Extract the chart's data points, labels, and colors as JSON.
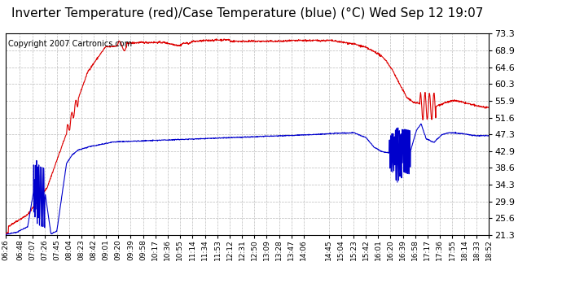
{
  "title": "Inverter Temperature (red)/Case Temperature (blue) (°C) Wed Sep 12 19:07",
  "copyright": "Copyright 2007 Cartronics.com",
  "background_color": "#ffffff",
  "plot_background": "#ffffff",
  "grid_color": "#bbbbbb",
  "y_ticks": [
    21.3,
    25.6,
    29.9,
    34.3,
    38.6,
    42.9,
    47.3,
    51.6,
    55.9,
    60.3,
    64.6,
    68.9,
    73.3
  ],
  "ylim": [
    21.3,
    73.3
  ],
  "x_labels": [
    "06:26",
    "06:48",
    "07:07",
    "07:26",
    "07:45",
    "08:04",
    "08:23",
    "08:42",
    "09:01",
    "09:20",
    "09:39",
    "09:58",
    "10:17",
    "10:36",
    "10:55",
    "11:14",
    "11:34",
    "11:53",
    "12:12",
    "12:31",
    "12:50",
    "13:09",
    "13:28",
    "13:47",
    "14:06",
    "14:45",
    "15:04",
    "15:23",
    "15:42",
    "16:01",
    "16:20",
    "16:39",
    "16:58",
    "17:17",
    "17:36",
    "17:55",
    "18:14",
    "18:33",
    "18:52"
  ],
  "red_color": "#dd0000",
  "blue_color": "#0000cc",
  "line_width": 0.8,
  "title_fontsize": 11,
  "copyright_fontsize": 7,
  "tick_fontsize": 8,
  "xlabel_fontsize": 6.5
}
